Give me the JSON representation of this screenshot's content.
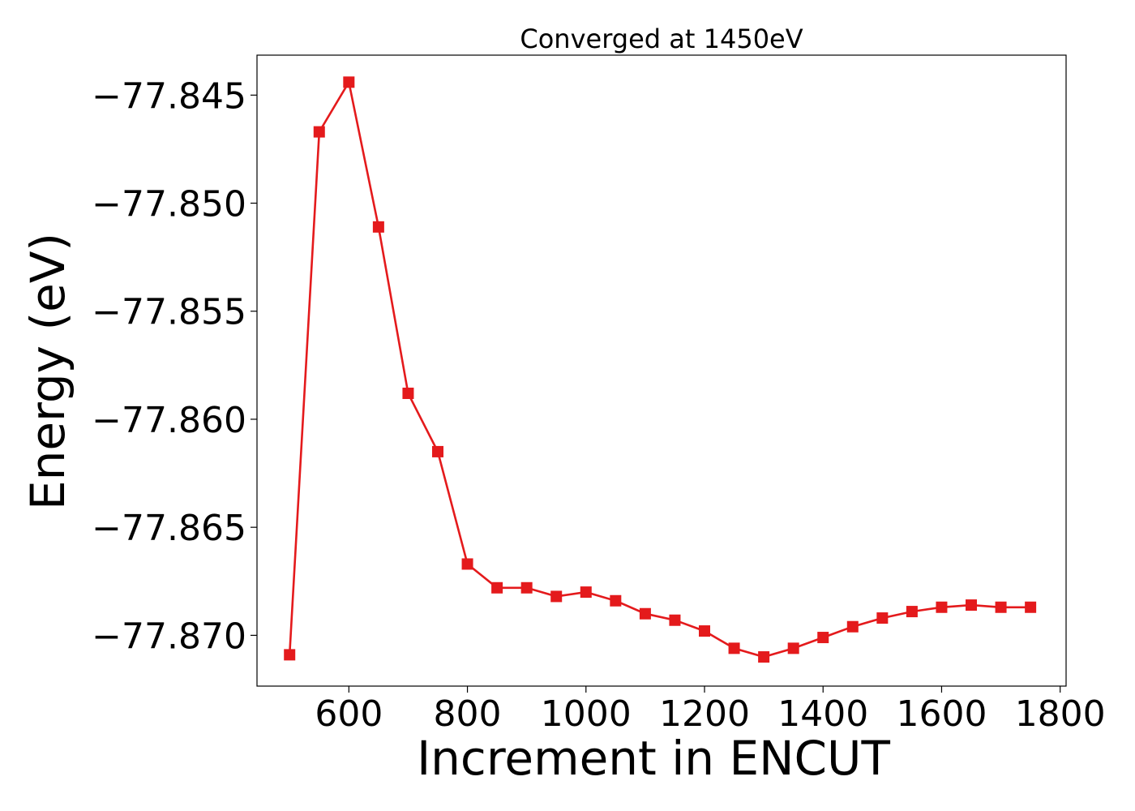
{
  "chart_data": {
    "type": "line",
    "title": "Converged at 1450eV",
    "xlabel": "Increment in ENCUT",
    "ylabel": "Energy (eV)",
    "xlim": [
      445,
      1810
    ],
    "ylim": [
      -77.87235,
      -77.84315
    ],
    "xticks": [
      600,
      800,
      1000,
      1200,
      1400,
      1600,
      1800
    ],
    "xtick_labels": [
      "600",
      "800",
      "1000",
      "1200",
      "1400",
      "1600",
      "1800"
    ],
    "yticks": [
      -77.845,
      -77.85,
      -77.855,
      -77.86,
      -77.865,
      -77.87
    ],
    "ytick_labels": [
      "−77.845",
      "−77.850",
      "−77.855",
      "−77.860",
      "−77.865",
      "−77.870"
    ],
    "grid": false,
    "series": [
      {
        "color": "#e41a1c",
        "marker": "square",
        "x": [
          500,
          550,
          600,
          650,
          700,
          750,
          800,
          850,
          900,
          950,
          1000,
          1050,
          1100,
          1150,
          1200,
          1250,
          1300,
          1350,
          1400,
          1450,
          1500,
          1550,
          1600,
          1650,
          1700,
          1750
        ],
        "y": [
          -77.8709,
          -77.8467,
          -77.8444,
          -77.8511,
          -77.8588,
          -77.8615,
          -77.8667,
          -77.8678,
          -77.8678,
          -77.8682,
          -77.868,
          -77.8684,
          -77.869,
          -77.8693,
          -77.8698,
          -77.8706,
          -77.871,
          -77.8706,
          -77.8701,
          -77.8696,
          -77.8692,
          -77.8689,
          -77.8687,
          -77.8686,
          -77.8687,
          -77.8687
        ]
      }
    ]
  }
}
